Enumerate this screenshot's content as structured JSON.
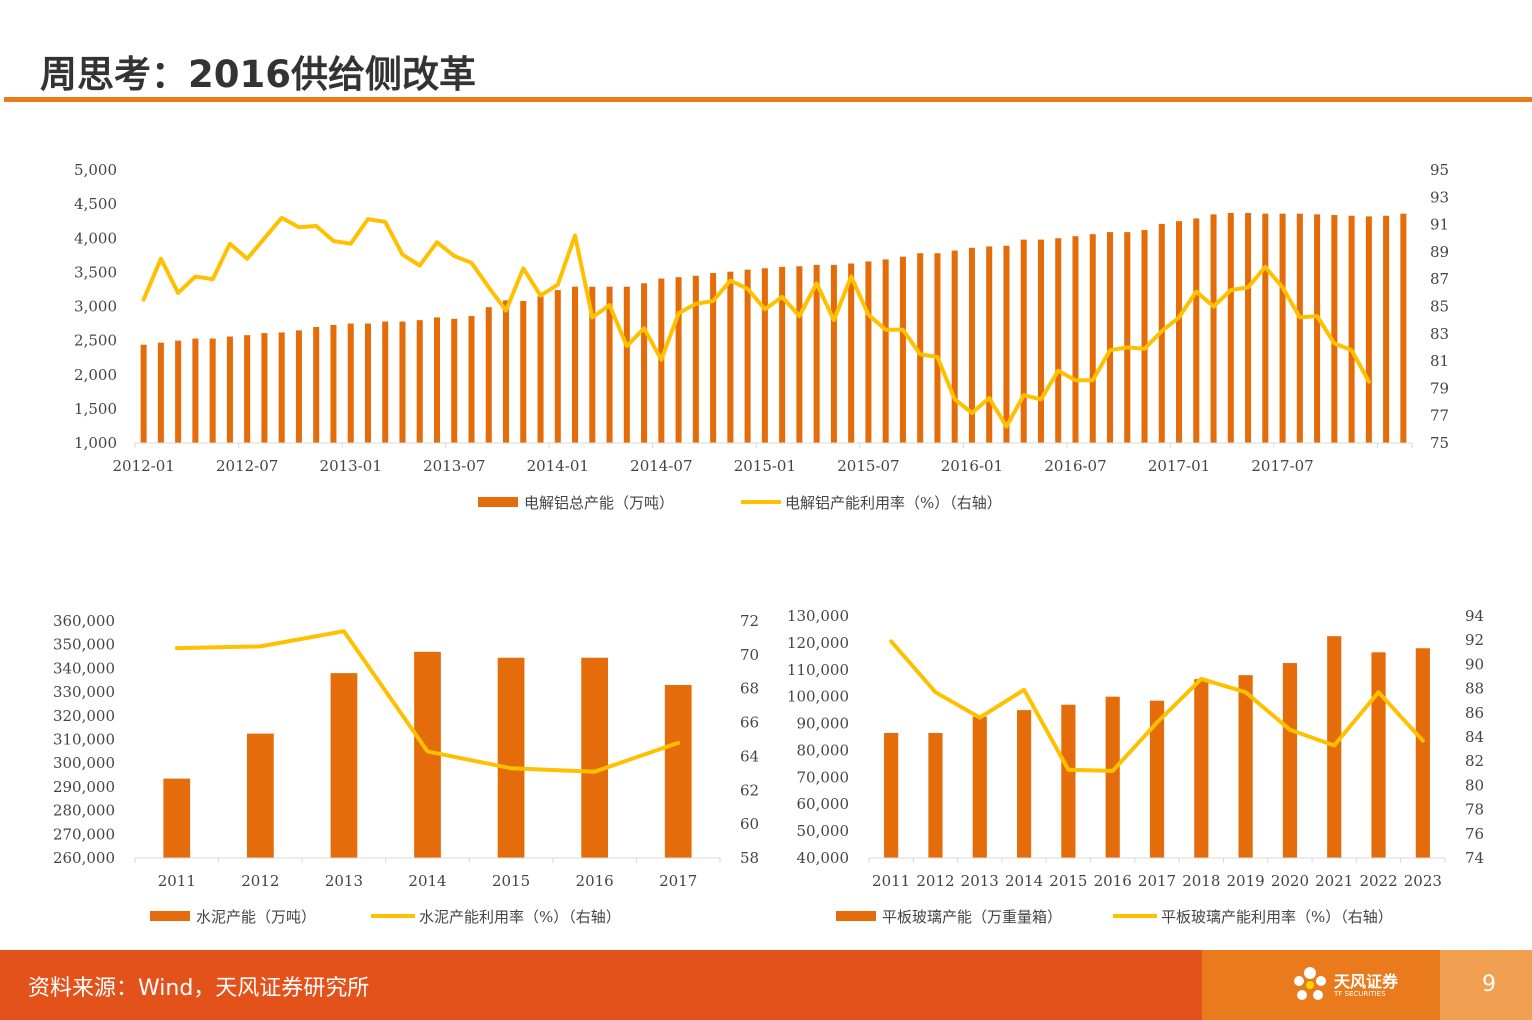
{
  "page": {
    "title": "周思考：2016供给侧改革",
    "footer_source": "资料来源：Wind，天风证券研究所",
    "logo_name": "天风证券",
    "logo_sub": "TF SECURITIES",
    "page_number": "9"
  },
  "colors": {
    "bar": "#e46c0a",
    "line": "#ffc000",
    "accent": "#ea7b1c",
    "footer": "#e4521c"
  },
  "chart_data": [
    {
      "type": "bar",
      "x_tick_labels": [
        "2012-01",
        "2012-07",
        "2013-01",
        "2013-07",
        "2014-01",
        "2014-07",
        "2015-01",
        "2015-07",
        "2016-01",
        "2016-07",
        "2017-01",
        "2017-07"
      ],
      "left_ticks": [
        "5,000",
        "4,500",
        "4,000",
        "3,500",
        "3,000",
        "2,500",
        "2,000",
        "1,500",
        "1,000"
      ],
      "right_ticks": [
        "95",
        "93",
        "91",
        "89",
        "87",
        "85",
        "83",
        "81",
        "79",
        "77",
        "75"
      ],
      "ylim_left": [
        1000,
        5000
      ],
      "ylim_right": [
        75,
        95
      ],
      "series": [
        {
          "name": "电解铝总产能（万吨）",
          "type": "bar",
          "axis": "left",
          "values": [
            2440,
            2470,
            2500,
            2530,
            2530,
            2560,
            2580,
            2610,
            2620,
            2650,
            2700,
            2730,
            2750,
            2750,
            2780,
            2780,
            2800,
            2840,
            2820,
            2860,
            2990,
            3090,
            3080,
            3150,
            3240,
            3290,
            3290,
            3290,
            3290,
            3340,
            3410,
            3430,
            3450,
            3490,
            3510,
            3540,
            3560,
            3580,
            3590,
            3610,
            3610,
            3630,
            3660,
            3690,
            3730,
            3780,
            3780,
            3820,
            3860,
            3880,
            3890,
            3980,
            3980,
            4000,
            4030,
            4060,
            4090,
            4090,
            4120,
            4210,
            4250,
            4290,
            4350,
            4370,
            4370,
            4360,
            4360,
            4360,
            4350,
            4340,
            4330,
            4320,
            4330,
            4360
          ]
        },
        {
          "name": "电解铝产能利用率（%）（右轴）",
          "type": "line",
          "axis": "right",
          "values": [
            85.5,
            88.5,
            86.0,
            87.2,
            87.0,
            89.6,
            88.5,
            90.0,
            91.5,
            90.8,
            90.9,
            89.8,
            89.6,
            91.4,
            91.2,
            88.8,
            88.0,
            89.7,
            88.7,
            88.2,
            86.4,
            84.7,
            87.8,
            85.8,
            86.6,
            90.2,
            84.2,
            85.1,
            82.1,
            83.4,
            81.1,
            84.5,
            85.2,
            85.4,
            86.9,
            86.3,
            84.8,
            85.7,
            84.3,
            86.7,
            84.0,
            87.2,
            84.4,
            83.3,
            83.3,
            81.5,
            81.3,
            78.2,
            77.2,
            78.3,
            76.2,
            78.5,
            78.2,
            80.3,
            79.6,
            79.6,
            81.8,
            82.0,
            81.9,
            83.2,
            84.2,
            86.1,
            85.0,
            86.2,
            86.4,
            87.9,
            86.4,
            84.2,
            84.3,
            82.3,
            81.8,
            79.5
          ]
        }
      ]
    },
    {
      "type": "bar",
      "categories": [
        "2011",
        "2012",
        "2013",
        "2014",
        "2015",
        "2016",
        "2017"
      ],
      "left_ticks": [
        "360,000",
        "350,000",
        "340,000",
        "330,000",
        "320,000",
        "310,000",
        "300,000",
        "290,000",
        "280,000",
        "270,000",
        "260,000"
      ],
      "right_ticks": [
        "72",
        "70",
        "68",
        "66",
        "64",
        "62",
        "60",
        "58"
      ],
      "ylim_left": [
        260000,
        360000
      ],
      "ylim_right": [
        58,
        72
      ],
      "series": [
        {
          "name": "水泥产能（万吨）",
          "type": "bar",
          "axis": "left",
          "values": [
            293500,
            312500,
            338000,
            347000,
            344500,
            344500,
            333000
          ]
        },
        {
          "name": "水泥产能利用率（%）（右轴）",
          "type": "line",
          "axis": "right",
          "values": [
            70.4,
            70.5,
            71.4,
            64.3,
            63.3,
            63.1,
            64.8
          ]
        }
      ]
    },
    {
      "type": "bar",
      "categories": [
        "2011",
        "2012",
        "2013",
        "2014",
        "2015",
        "2016",
        "2017",
        "2018",
        "2019",
        "2020",
        "2021",
        "2022",
        "2023"
      ],
      "left_ticks": [
        "130,000",
        "120,000",
        "110,000",
        "100,000",
        "90,000",
        "80,000",
        "70,000",
        "60,000",
        "50,000",
        "40,000"
      ],
      "right_ticks": [
        "94",
        "92",
        "90",
        "88",
        "86",
        "84",
        "82",
        "80",
        "78",
        "76",
        "74"
      ],
      "ylim_left": [
        40000,
        130000
      ],
      "ylim_right": [
        74,
        94
      ],
      "series": [
        {
          "name": "平板玻璃产能（万重量箱）",
          "type": "bar",
          "axis": "left",
          "values": [
            86500,
            86500,
            92500,
            95000,
            97000,
            100000,
            98500,
            106500,
            108000,
            112500,
            122500,
            116500,
            118000
          ]
        },
        {
          "name": "平板玻璃产能利用率（%）（右轴）",
          "type": "line",
          "axis": "right",
          "values": [
            91.9,
            87.7,
            85.6,
            87.9,
            81.3,
            81.2,
            85.2,
            88.8,
            87.7,
            84.6,
            83.3,
            87.7,
            83.7
          ]
        }
      ]
    }
  ]
}
